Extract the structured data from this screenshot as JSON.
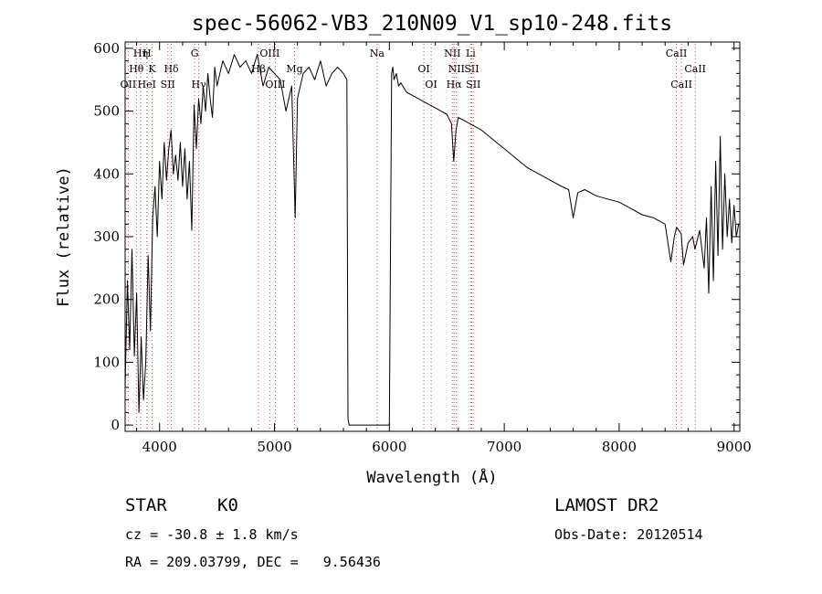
{
  "chart_data": {
    "type": "line",
    "title": "spec-56062-VB3_210N09_V1_sp10-248.fits",
    "xlabel": "Wavelength (Å)",
    "ylabel": "Flux (relative)",
    "xlim": [
      3700,
      9050
    ],
    "ylim": [
      -10,
      610
    ],
    "x_ticks": [
      4000,
      5000,
      6000,
      7000,
      8000,
      9000
    ],
    "y_ticks": [
      0,
      100,
      200,
      300,
      400,
      500,
      600
    ],
    "grid": false,
    "series": [
      {
        "x": [
          3700,
          3720,
          3740,
          3760,
          3780,
          3800,
          3820,
          3840,
          3860,
          3880,
          3900,
          3920,
          3940,
          3960,
          3980,
          4000,
          4020,
          4040,
          4060,
          4080,
          4100,
          4120,
          4140,
          4160,
          4180,
          4200,
          4220,
          4240,
          4260,
          4280,
          4300,
          4320,
          4340,
          4360,
          4380,
          4400,
          4420,
          4440,
          4460,
          4480,
          4500,
          4550,
          4600,
          4650,
          4700,
          4750,
          4800,
          4850,
          4900,
          4950,
          5000,
          5050,
          5100,
          5150,
          5180,
          5200,
          5250,
          5300,
          5350,
          5400,
          5450,
          5500,
          5550,
          5600,
          5630,
          5640,
          5650,
          5700,
          5800,
          5900,
          6000,
          6020,
          6030,
          6040,
          6060,
          6080,
          6100,
          6150,
          6200,
          6250,
          6300,
          6350,
          6400,
          6450,
          6500,
          6540,
          6560,
          6580,
          6600,
          6650,
          6700,
          6800,
          6900,
          7000,
          7100,
          7200,
          7300,
          7400,
          7500,
          7560,
          7600,
          7640,
          7700,
          7800,
          7900,
          8000,
          8100,
          8200,
          8300,
          8400,
          8450,
          8480,
          8500,
          8540,
          8560,
          8600,
          8640,
          8660,
          8700,
          8740,
          8760,
          8780,
          8800,
          8820,
          8840,
          8860,
          8880,
          8900,
          8920,
          8940,
          8960,
          8980,
          9000,
          9020,
          9040
        ],
        "y": [
          60,
          230,
          120,
          280,
          110,
          210,
          20,
          140,
          40,
          100,
          270,
          150,
          330,
          380,
          300,
          420,
          360,
          450,
          390,
          440,
          470,
          400,
          430,
          390,
          450,
          380,
          440,
          360,
          420,
          310,
          510,
          440,
          520,
          480,
          540,
          500,
          560,
          520,
          490,
          570,
          540,
          580,
          560,
          590,
          570,
          580,
          560,
          590,
          540,
          570,
          560,
          550,
          500,
          540,
          330,
          520,
          560,
          570,
          550,
          580,
          540,
          560,
          570,
          560,
          550,
          10,
          0,
          0,
          0,
          0,
          0,
          560,
          570,
          550,
          560,
          540,
          545,
          530,
          525,
          520,
          515,
          510,
          505,
          500,
          495,
          480,
          420,
          470,
          490,
          485,
          480,
          470,
          455,
          440,
          425,
          410,
          400,
          390,
          380,
          375,
          330,
          370,
          375,
          365,
          360,
          355,
          345,
          335,
          330,
          320,
          260,
          300,
          315,
          305,
          255,
          290,
          300,
          280,
          310,
          250,
          330,
          210,
          380,
          230,
          420,
          270,
          460,
          280,
          400,
          300,
          360,
          290,
          350,
          300,
          320
        ]
      }
    ],
    "line_markers": [
      {
        "label": "Hη",
        "x": 3835,
        "row": 0
      },
      {
        "label": "H",
        "x": 3890,
        "row": 0
      },
      {
        "label": "Hθ",
        "x": 3798,
        "row": 1
      },
      {
        "label": "K",
        "x": 3934,
        "row": 1
      },
      {
        "label": "Hδ",
        "x": 4102,
        "row": 1
      },
      {
        "label": "OII",
        "x": 3727,
        "row": 2
      },
      {
        "label": "HeI",
        "x": 3889,
        "row": 2
      },
      {
        "label": "SII",
        "x": 4072,
        "row": 2
      },
      {
        "label": "G",
        "x": 4305,
        "row": 0
      },
      {
        "label": "Hγ",
        "x": 4341,
        "row": 2
      },
      {
        "label": "OIII",
        "x": 4959,
        "row": 0
      },
      {
        "label": "Hβ",
        "x": 4861,
        "row": 1
      },
      {
        "label": "OIII",
        "x": 5007,
        "row": 2
      },
      {
        "label": "Mg",
        "x": 5175,
        "row": 1
      },
      {
        "label": "Na",
        "x": 5893,
        "row": 0
      },
      {
        "label": "OI",
        "x": 6300,
        "row": 1
      },
      {
        "label": "OI",
        "x": 6364,
        "row": 2
      },
      {
        "label": "NII",
        "x": 6548,
        "row": 0
      },
      {
        "label": "Li",
        "x": 6708,
        "row": 0
      },
      {
        "label": "NII",
        "x": 6584,
        "row": 1
      },
      {
        "label": "SII",
        "x": 6717,
        "row": 1
      },
      {
        "label": "Hα",
        "x": 6563,
        "row": 2
      },
      {
        "label": "SII",
        "x": 6731,
        "row": 2
      },
      {
        "label": "CaII",
        "x": 8498,
        "row": 0
      },
      {
        "label": "CaII",
        "x": 8662,
        "row": 1
      },
      {
        "label": "CaII",
        "x": 8542,
        "row": 2
      }
    ]
  },
  "info": {
    "object_class": "STAR",
    "subclass": "K0",
    "survey": "LAMOST DR2",
    "redshift": "cz = -30.8 ± 1.8 km/s",
    "obs_date": "Obs-Date: 20120514",
    "coords": "RA = 209.03799, DEC =   9.56436"
  },
  "colors": {
    "line_marker": "#d94040",
    "spectrum": "#000000"
  }
}
